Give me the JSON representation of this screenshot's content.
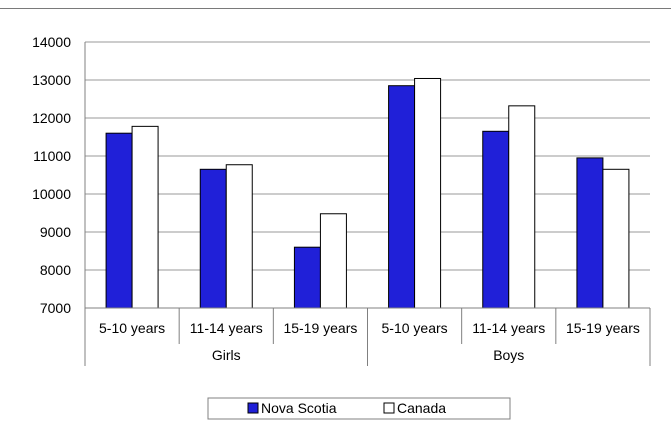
{
  "chart_data": {
    "type": "bar",
    "title": "",
    "xlabel": "",
    "ylabel": "",
    "ylim": [
      7000,
      14000
    ],
    "yticks": [
      7000,
      8000,
      9000,
      10000,
      11000,
      12000,
      13000,
      14000
    ],
    "grid": true,
    "categories": [
      "5-10 years",
      "11-14 years",
      "15-19 years",
      "5-10 years",
      "11-14 years",
      "15-19 years"
    ],
    "groups": [
      {
        "label": "Girls",
        "span": [
          0,
          2
        ]
      },
      {
        "label": "Boys",
        "span": [
          3,
          5
        ]
      }
    ],
    "series": [
      {
        "name": "Nova Scotia",
        "color": "#2020d8",
        "values": [
          11600,
          10650,
          8600,
          12850,
          11650,
          10950
        ]
      },
      {
        "name": "Canada",
        "color": "#ffffff",
        "values": [
          11780,
          10770,
          9480,
          13040,
          12320,
          10650
        ]
      }
    ],
    "legend_position": "bottom-center",
    "colors": {
      "axis": "#808080",
      "grid": "#9a9a9a",
      "bar_stroke": "#000000"
    }
  }
}
